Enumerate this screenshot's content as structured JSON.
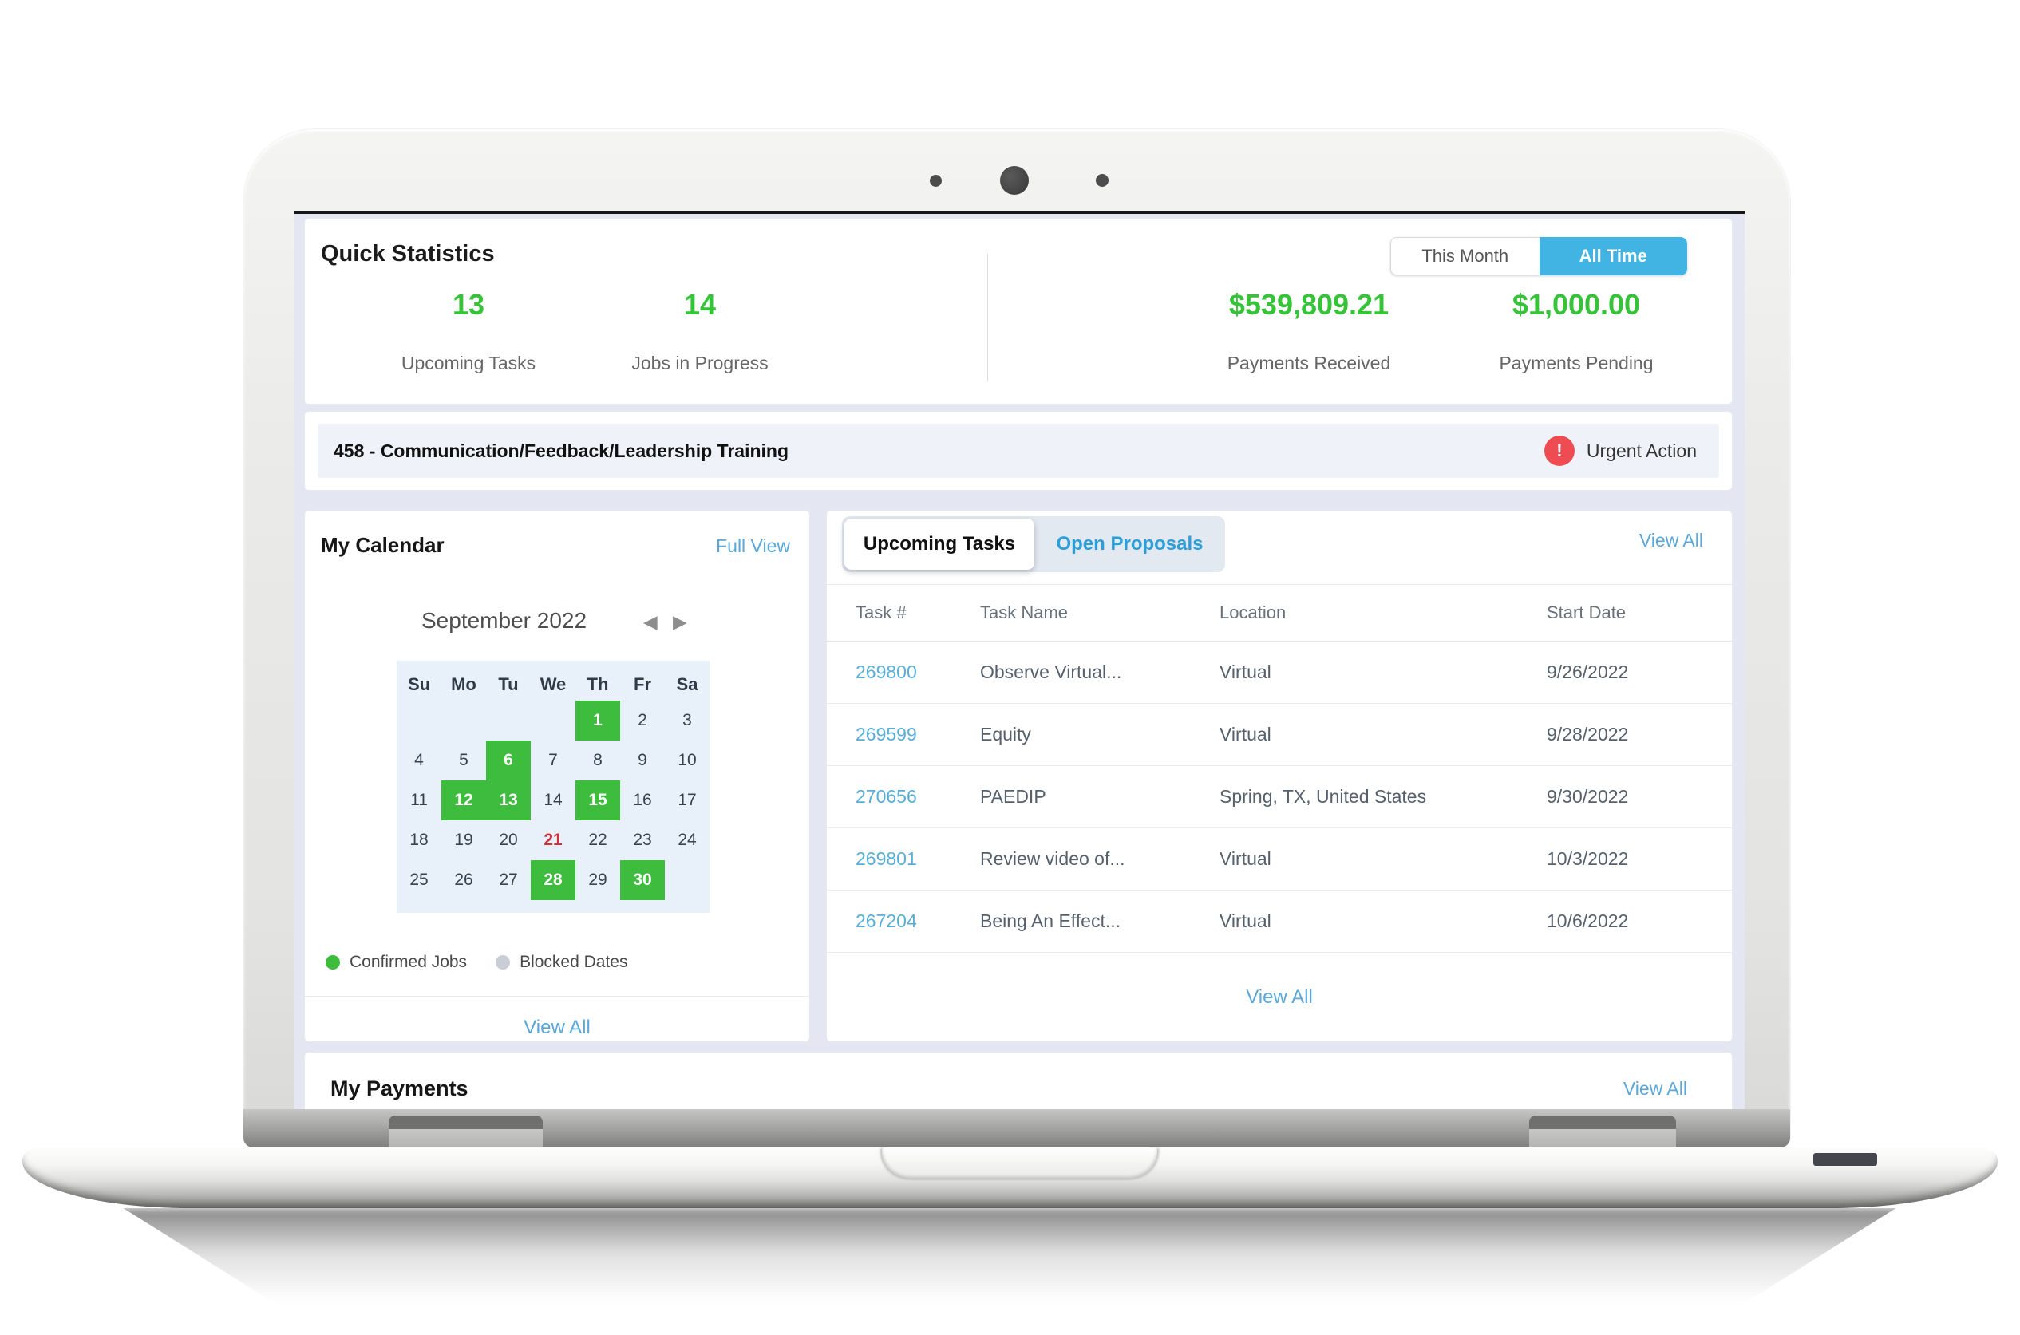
{
  "quick_stats": {
    "title": "Quick Statistics",
    "toggle": {
      "this_month": "This Month",
      "all_time": "All Time",
      "active": "All Time"
    },
    "stats": [
      {
        "value": "13",
        "label": "Upcoming Tasks"
      },
      {
        "value": "14",
        "label": "Jobs in Progress"
      },
      {
        "value": "$539,809.21",
        "label": "Payments Received"
      },
      {
        "value": "$1,000.00",
        "label": "Payments Pending"
      }
    ]
  },
  "alert": {
    "text": "458 - Communication/Feedback/Leadership Training",
    "badge_icon": "!",
    "badge_label": "Urgent Action"
  },
  "calendar": {
    "title": "My Calendar",
    "full_view": "Full View",
    "month": "September 2022",
    "prev_arrow": "◀",
    "next_arrow": "▶",
    "day_headers": [
      "Su",
      "Mo",
      "Tu",
      "We",
      "Th",
      "Fr",
      "Sa"
    ],
    "weeks": [
      [
        "",
        "",
        "",
        "",
        "1",
        "2",
        "3"
      ],
      [
        "4",
        "5",
        "6",
        "7",
        "8",
        "9",
        "10"
      ],
      [
        "11",
        "12",
        "13",
        "14",
        "15",
        "16",
        "17"
      ],
      [
        "18",
        "19",
        "20",
        "21",
        "22",
        "23",
        "24"
      ],
      [
        "25",
        "26",
        "27",
        "28",
        "29",
        "30",
        ""
      ]
    ],
    "confirmed_days": [
      1,
      6,
      12,
      13,
      15,
      28,
      30
    ],
    "today": 21,
    "legend": [
      {
        "label": "Confirmed Jobs",
        "color": "#3cbd3c"
      },
      {
        "label": "Blocked Dates",
        "color": "#c9ced6"
      }
    ],
    "view_all": "View All"
  },
  "tasks": {
    "tab_upcoming": "Upcoming Tasks",
    "tab_open_proposals": "Open Proposals",
    "active_tab": "Upcoming Tasks",
    "view_all_top": "View All",
    "columns": [
      "Task #",
      "Task Name",
      "Location",
      "Start Date"
    ],
    "rows": [
      {
        "id": "269800",
        "name": "Observe Virtual...",
        "location": "Virtual",
        "date": "9/26/2022"
      },
      {
        "id": "269599",
        "name": "Equity",
        "location": "Virtual",
        "date": "9/28/2022"
      },
      {
        "id": "270656",
        "name": "PAEDIP",
        "location": "Spring, TX, United States",
        "date": "9/30/2022"
      },
      {
        "id": "269801",
        "name": "Review video of...",
        "location": "Virtual",
        "date": "10/3/2022"
      },
      {
        "id": "267204",
        "name": "Being An Effect...",
        "location": "Virtual",
        "date": "10/6/2022"
      }
    ],
    "view_all_bottom": "View All"
  },
  "payments": {
    "title": "My Payments",
    "view_all": "View All"
  },
  "colors": {
    "stat_green": "#35c337",
    "calendar_green": "#3ebc3e",
    "calendar_red": "#c9323d",
    "toggle_blue": "#41b4e4",
    "tab_blue": "#2a9fd8",
    "link_blue": "#5aa7d8",
    "urgent_red": "#ee4b53",
    "page_background": "#e4e6f1"
  }
}
